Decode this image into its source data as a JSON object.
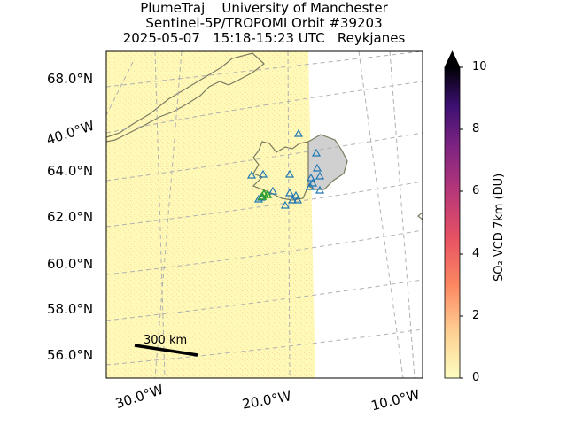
{
  "title": {
    "line1": "PlumeTraj    University of Manchester",
    "line2": "Sentinel-5P/TROPOMI Orbit #39203",
    "line3": "2025-05-07   15:18-15:23 UTC   Reykjanes"
  },
  "map": {
    "lat_labels": [
      "68.0°N",
      "64.0°N",
      "62.0°N",
      "60.0°N",
      "58.0°N",
      "56.0°N"
    ],
    "lon_labels": [
      "30.0°W",
      "20.0°W",
      "10.0°W"
    ],
    "left_lon_label": "40.0°W",
    "scale_bar_label": "300 km",
    "markers": {
      "volcano_color": "#1f77b4",
      "vent_color": "#2ca02c"
    }
  },
  "colorbar": {
    "label": "SO₂ VCD 7km (DU)",
    "ticks": [
      "10",
      "8",
      "6",
      "4",
      "2",
      "0"
    ],
    "min": 0,
    "max": 10,
    "extend": "max",
    "colormap": "magma_r"
  },
  "colors": {
    "background_swath": "#fff9b8",
    "land_iceland": "#d0d0d0",
    "coastline": "#7a7a60",
    "grid": "#b0b0b0"
  }
}
